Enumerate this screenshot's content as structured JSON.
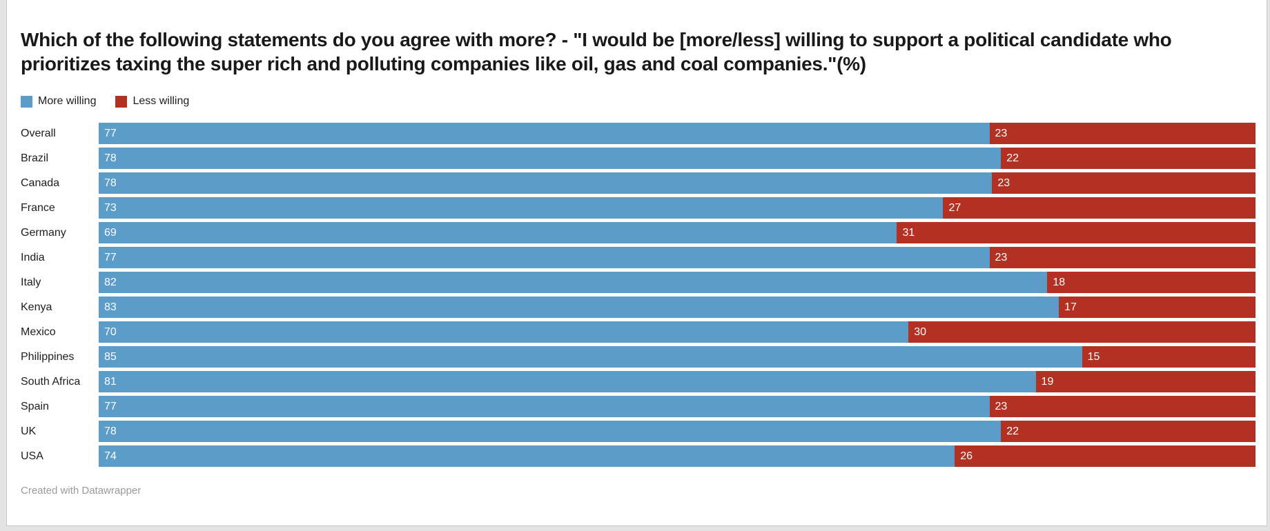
{
  "page": {
    "title": "Which of the following statements do you agree with more?  - \"I would be [more/less] willing to support a political candidate who prioritizes taxing the super rich and polluting companies like oil, gas and coal companies.\"(%)",
    "footer_credit": "Created with Datawrapper"
  },
  "colors": {
    "more_willing": "#5C9CC9",
    "less_willing": "#B23123",
    "title_text": "#191919",
    "category_text": "#1d1d1d",
    "value_text": "#ffffff",
    "credit_text": "#9a9a9a",
    "card_background": "#ffffff",
    "page_background": "#e3e3e3"
  },
  "chart_data": {
    "type": "bar",
    "subtype": "stacked-horizontal",
    "unit": "%",
    "title": "Which of the following statements do you agree with more?  - \"I would be [more/less] willing to support a political candidate who prioritizes taxing the super rich and polluting companies like oil, gas and coal companies.\"(%)",
    "categories": [
      "Overall",
      "Brazil",
      "Canada",
      "France",
      "Germany",
      "India",
      "Italy",
      "Kenya",
      "Mexico",
      "Philippines",
      "South Africa",
      "Spain",
      "UK",
      "USA"
    ],
    "series": [
      {
        "name": "More willing",
        "color": "#5C9CC9",
        "values": [
          77,
          78,
          78,
          73,
          69,
          77,
          82,
          83,
          70,
          85,
          81,
          77,
          78,
          74
        ]
      },
      {
        "name": "Less willing",
        "color": "#B23123",
        "values": [
          23,
          22,
          23,
          27,
          31,
          23,
          18,
          17,
          30,
          15,
          19,
          23,
          22,
          26
        ]
      }
    ],
    "xlim": [
      0,
      100
    ],
    "grid": false,
    "value_labels": "inside-start",
    "legend_position": "top-left",
    "credit": "Created with Datawrapper"
  }
}
